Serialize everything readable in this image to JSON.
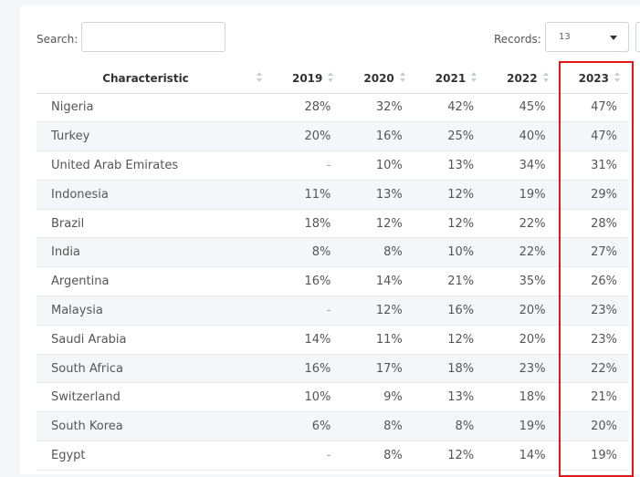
{
  "toolbar": {
    "search_label": "Search:",
    "search_value": "",
    "records_label": "Records:",
    "records_value": "13"
  },
  "table": {
    "headers": [
      "Characteristic",
      "2019",
      "2020",
      "2021",
      "2022",
      "2023"
    ],
    "rows": [
      [
        "Nigeria",
        "28%",
        "32%",
        "42%",
        "45%",
        "47%"
      ],
      [
        "Turkey",
        "20%",
        "16%",
        "25%",
        "40%",
        "47%"
      ],
      [
        "United Arab Emirates",
        "-",
        "10%",
        "13%",
        "34%",
        "31%"
      ],
      [
        "Indonesia",
        "11%",
        "13%",
        "12%",
        "19%",
        "29%"
      ],
      [
        "Brazil",
        "18%",
        "12%",
        "12%",
        "22%",
        "28%"
      ],
      [
        "India",
        "8%",
        "8%",
        "10%",
        "22%",
        "27%"
      ],
      [
        "Argentina",
        "16%",
        "14%",
        "21%",
        "35%",
        "26%"
      ],
      [
        "Malaysia",
        "-",
        "12%",
        "16%",
        "20%",
        "23%"
      ],
      [
        "Saudi Arabia",
        "14%",
        "11%",
        "12%",
        "20%",
        "23%"
      ],
      [
        "South Africa",
        "16%",
        "17%",
        "18%",
        "23%",
        "22%"
      ],
      [
        "Switzerland",
        "10%",
        "9%",
        "13%",
        "18%",
        "21%"
      ],
      [
        "South Korea",
        "6%",
        "8%",
        "8%",
        "19%",
        "20%"
      ],
      [
        "Egypt",
        "-",
        "8%",
        "12%",
        "14%",
        "19%"
      ]
    ]
  },
  "highlight": {
    "column": "2023",
    "color": "#e01818"
  }
}
